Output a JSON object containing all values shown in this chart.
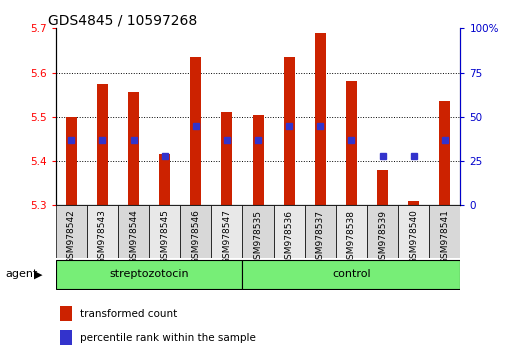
{
  "title": "GDS4845 / 10597268",
  "samples": [
    "GSM978542",
    "GSM978543",
    "GSM978544",
    "GSM978545",
    "GSM978546",
    "GSM978547",
    "GSM978535",
    "GSM978536",
    "GSM978537",
    "GSM978538",
    "GSM978539",
    "GSM978540",
    "GSM978541"
  ],
  "groups": [
    "streptozotocin",
    "streptozotocin",
    "streptozotocin",
    "streptozotocin",
    "streptozotocin",
    "streptozotocin",
    "control",
    "control",
    "control",
    "control",
    "control",
    "control",
    "control"
  ],
  "transformed_count": [
    5.5,
    5.575,
    5.555,
    5.415,
    5.635,
    5.51,
    5.505,
    5.635,
    5.69,
    5.58,
    5.38,
    5.31,
    5.535
  ],
  "percentile_rank": [
    37,
    37,
    37,
    28,
    45,
    37,
    37,
    45,
    45,
    37,
    28,
    28,
    37
  ],
  "ylim_left": [
    5.3,
    5.7
  ],
  "ylim_right": [
    0,
    100
  ],
  "yticks_left": [
    5.3,
    5.4,
    5.5,
    5.6,
    5.7
  ],
  "yticks_right": [
    0,
    25,
    50,
    75,
    100
  ],
  "bar_color": "#cc2200",
  "dot_color": "#3333cc",
  "group_color": "#77ee77",
  "streptozotocin_label": "streptozotocin",
  "control_label": "control",
  "agent_label": "agent",
  "legend_bar_label": "transformed count",
  "legend_dot_label": "percentile rank within the sample",
  "background_color": "#ffffff",
  "plot_bg_color": "#ffffff",
  "cell_color_even": "#d8d8d8",
  "cell_color_odd": "#e8e8e8",
  "tick_label_fontsize": 7.5,
  "title_fontsize": 10,
  "bar_width": 0.35
}
